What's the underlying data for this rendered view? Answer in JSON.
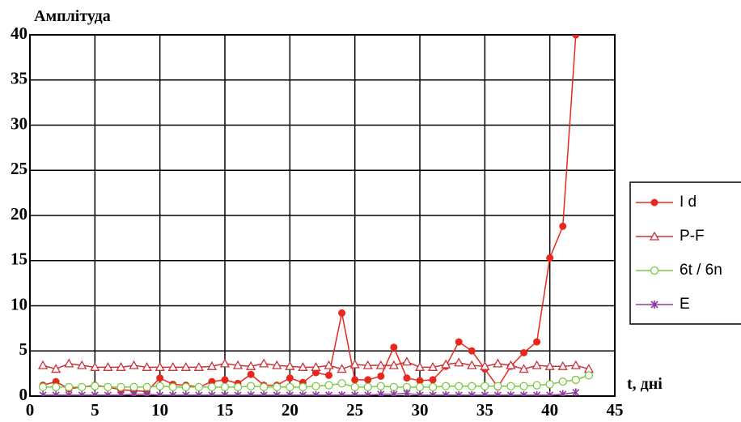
{
  "chart_data": {
    "type": "line",
    "y_label": "Амплітуда",
    "x_label": "t, дні",
    "x": [
      1,
      2,
      3,
      4,
      5,
      6,
      7,
      8,
      9,
      10,
      11,
      12,
      13,
      14,
      15,
      16,
      17,
      18,
      19,
      20,
      21,
      22,
      23,
      24,
      25,
      26,
      27,
      28,
      29,
      30,
      31,
      32,
      33,
      34,
      35,
      36,
      37,
      38,
      39,
      40,
      41,
      42,
      43
    ],
    "xlim": [
      0,
      45
    ],
    "xticks": [
      0,
      5,
      10,
      15,
      20,
      25,
      30,
      35,
      40,
      45
    ],
    "ylim": [
      0,
      40
    ],
    "yticks": [
      0,
      5,
      10,
      15,
      20,
      25,
      30,
      35,
      40
    ],
    "grid": true,
    "legend": "right",
    "series": [
      {
        "name": "I d",
        "color": "#e8281e",
        "marker": "filled-circle",
        "values": [
          1.2,
          1.6,
          0.8,
          1.0,
          1.2,
          1.0,
          0.7,
          0.6,
          0.5,
          2.0,
          1.3,
          1.2,
          1.0,
          1.6,
          1.8,
          1.4,
          2.4,
          1.2,
          1.2,
          2.0,
          1.5,
          2.6,
          2.3,
          9.2,
          1.8,
          1.8,
          2.2,
          5.4,
          2.0,
          1.7,
          1.8,
          3.3,
          6.0,
          5.0,
          3.0,
          1.0,
          3.3,
          4.8,
          6.0,
          15.3,
          18.8,
          40,
          null
        ]
      },
      {
        "name": "P-F",
        "color": "#c8333a",
        "marker": "triangle",
        "values": [
          3.4,
          3.0,
          3.6,
          3.4,
          3.2,
          3.2,
          3.2,
          3.4,
          3.2,
          3.2,
          3.2,
          3.2,
          3.2,
          3.3,
          3.6,
          3.4,
          3.3,
          3.6,
          3.4,
          3.3,
          3.2,
          3.2,
          3.4,
          3.0,
          3.5,
          3.4,
          3.4,
          3.4,
          3.8,
          3.2,
          3.2,
          3.5,
          3.7,
          3.4,
          3.3,
          3.6,
          3.4,
          3.0,
          3.4,
          3.3,
          3.3,
          3.4,
          3.0
        ]
      },
      {
        "name": "6t / 6n",
        "color": "#7ac943",
        "marker": "open-circle",
        "values": [
          1.0,
          1.0,
          1.0,
          1.0,
          1.1,
          1.0,
          1.0,
          1.0,
          1.0,
          1.1,
          1.0,
          1.0,
          1.0,
          1.0,
          1.0,
          1.0,
          1.1,
          1.0,
          1.0,
          1.0,
          1.0,
          1.1,
          1.2,
          1.4,
          1.0,
          1.0,
          1.1,
          1.0,
          1.0,
          1.0,
          1.0,
          1.1,
          1.1,
          1.1,
          1.1,
          1.1,
          1.1,
          1.1,
          1.2,
          1.3,
          1.6,
          1.8,
          2.3
        ]
      },
      {
        "name": "E",
        "color": "#8e3a9e",
        "marker": "star",
        "values": [
          0.1,
          0.1,
          0.1,
          0.1,
          0.1,
          0.1,
          0.1,
          0.2,
          0.2,
          0.1,
          0.1,
          0.1,
          0.1,
          0.1,
          0.1,
          0.1,
          0.1,
          0.1,
          0.1,
          0.1,
          0.1,
          0.1,
          0.1,
          0.1,
          0.1,
          0.1,
          0.2,
          0.2,
          0.3,
          0.1,
          0.1,
          0.1,
          0.1,
          0.1,
          0.1,
          0.1,
          0.1,
          0.1,
          0.1,
          0.1,
          0.2,
          0.4,
          null
        ]
      }
    ]
  }
}
